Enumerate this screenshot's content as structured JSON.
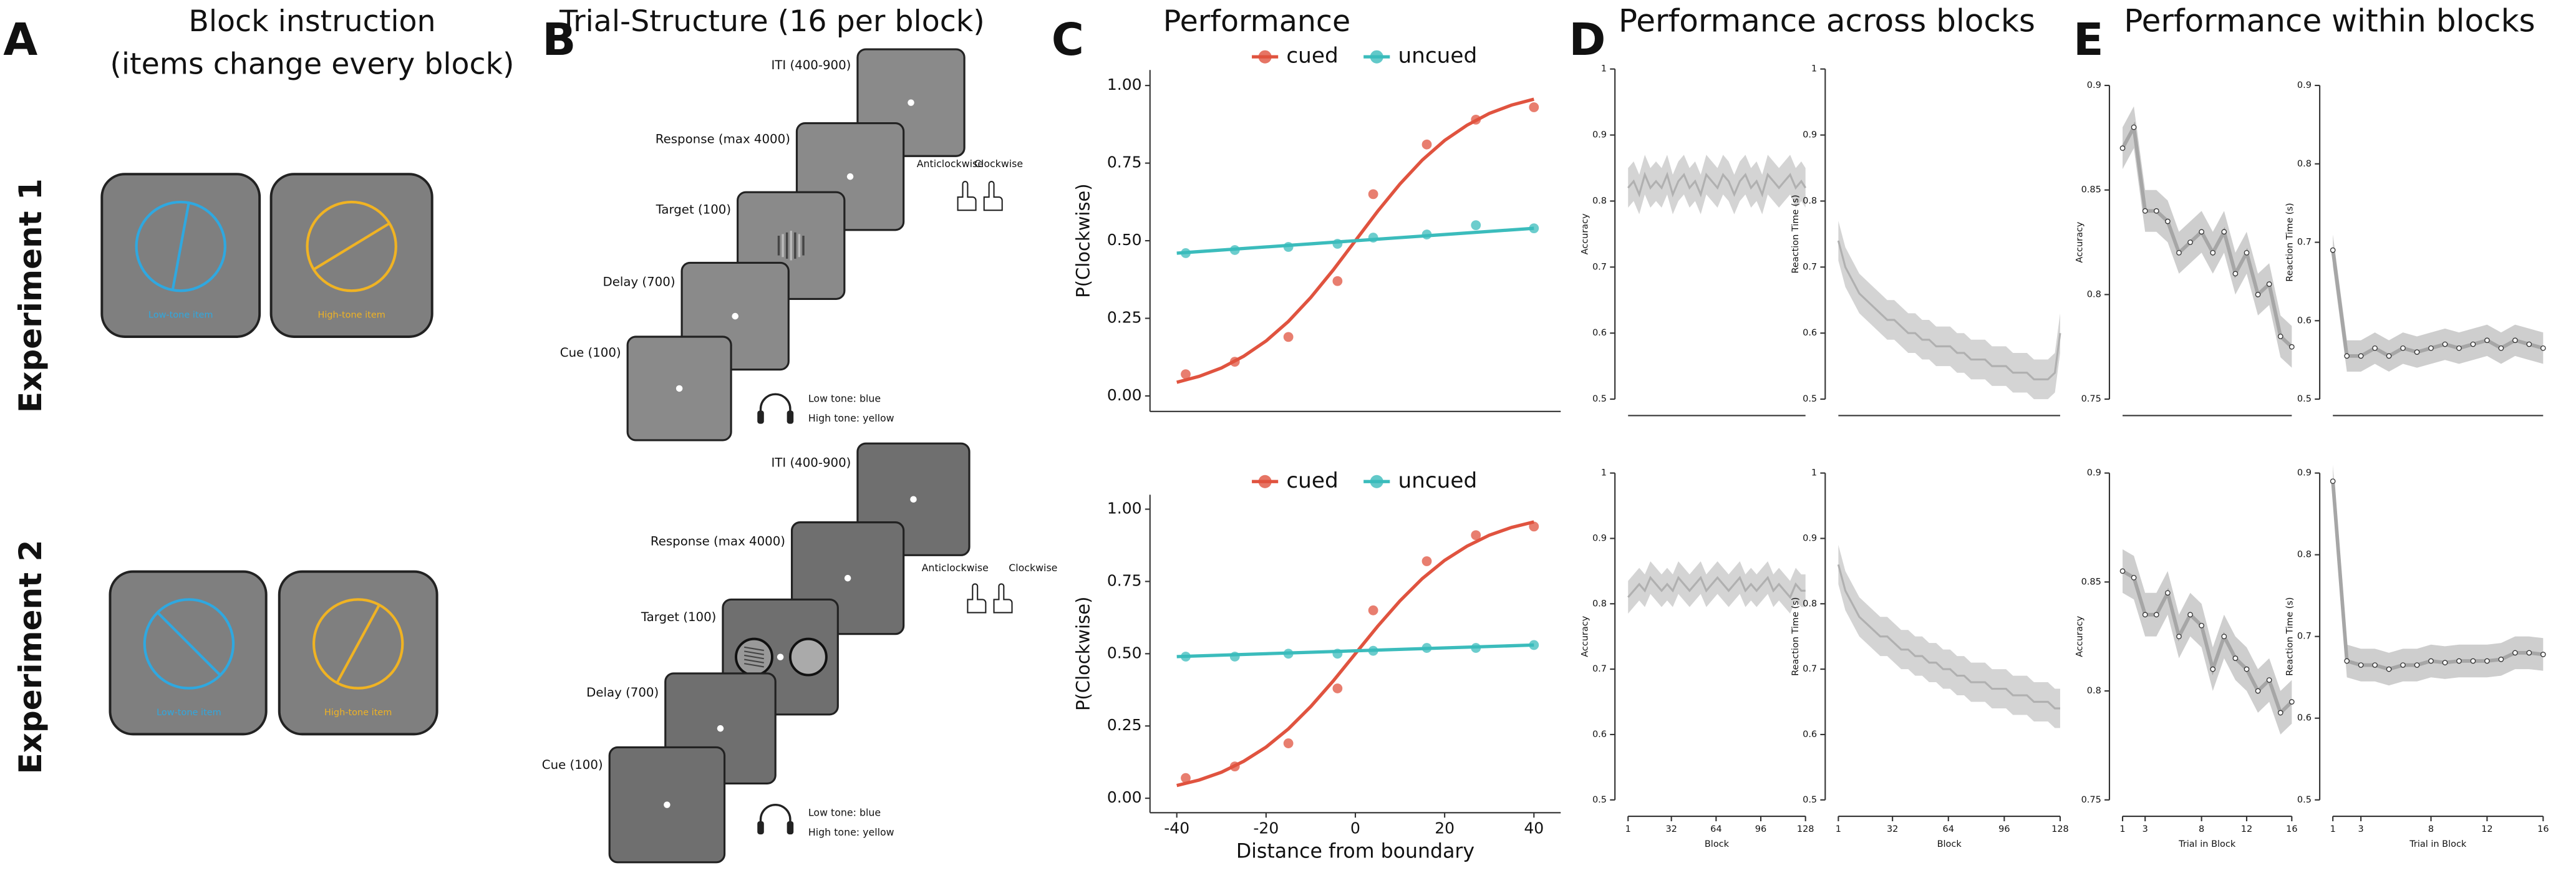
{
  "panel_labels": [
    "A",
    "B",
    "C",
    "D",
    "E"
  ],
  "panel_a": {
    "title_lines": [
      "Block instruction",
      "(items change every block)"
    ],
    "experiments": [
      "Experiment 1",
      "Experiment 2"
    ],
    "item_labels": [
      "Low-tone item",
      "High-tone item"
    ]
  },
  "panel_b": {
    "title": "Trial-Structure (16 per block)",
    "steps": [
      "ITI (400-900)",
      "Response (max 4000)",
      "Target (100)",
      "Delay (700)",
      "Cue (100)"
    ],
    "tones": [
      "Low tone: blue",
      "High tone: yellow"
    ],
    "responses": [
      "Anticlockwise",
      "Clockwise"
    ]
  },
  "panel_titles": {
    "c": "Performance",
    "d": "Performance across blocks",
    "e": "Performance within blocks"
  },
  "chart_data": [
    {
      "type": "line",
      "ylabel": "P(Clockwise)",
      "xlim": [
        -46,
        46
      ],
      "ylim": [
        -0.05,
        1.05
      ],
      "yticks": [
        {
          "value": 0,
          "label": "0.00"
        },
        {
          "value": 0.25,
          "label": "0.25"
        },
        {
          "value": 0.5,
          "label": "0.50"
        },
        {
          "value": 0.75,
          "label": "0.75"
        },
        {
          "value": 1,
          "label": "1.00"
        }
      ],
      "legend": "top",
      "series": [
        {
          "name": "cued",
          "color": "#e0533f",
          "x": [
            -38,
            -27,
            -15,
            -4,
            4,
            16,
            27,
            40
          ],
          "values": [
            0.07,
            0.11,
            0.19,
            0.37,
            0.65,
            0.81,
            0.89,
            0.93
          ],
          "fit_x": [
            -40,
            -35,
            -30,
            -25,
            -20,
            -15,
            -10,
            -5,
            0,
            5,
            10,
            15,
            20,
            25,
            30,
            35,
            40
          ],
          "fit_values": [
            0.044,
            0.063,
            0.09,
            0.128,
            0.177,
            0.24,
            0.317,
            0.405,
            0.5,
            0.595,
            0.683,
            0.76,
            0.823,
            0.872,
            0.91,
            0.937,
            0.956
          ]
        },
        {
          "name": "uncued",
          "color": "#3bbcbc",
          "x": [
            -38,
            -27,
            -15,
            -4,
            4,
            16,
            27,
            40
          ],
          "values": [
            0.46,
            0.47,
            0.48,
            0.49,
            0.51,
            0.52,
            0.55,
            0.54
          ],
          "fit_x": [
            -40,
            40
          ],
          "fit_values": [
            0.46,
            0.54
          ]
        }
      ]
    },
    {
      "type": "line",
      "ylabel": "P(Clockwise)",
      "xlabel": "Distance from boundary",
      "xlim": [
        -46,
        46
      ],
      "ylim": [
        -0.05,
        1.05
      ],
      "xticks": [
        -40,
        -20,
        0,
        20,
        40
      ],
      "yticks": [
        {
          "value": 0,
          "label": "0.00"
        },
        {
          "value": 0.25,
          "label": "0.25"
        },
        {
          "value": 0.5,
          "label": "0.50"
        },
        {
          "value": 0.75,
          "label": "0.75"
        },
        {
          "value": 1,
          "label": "1.00"
        }
      ],
      "legend": "top",
      "series": [
        {
          "name": "cued",
          "color": "#e0533f",
          "x": [
            -38,
            -27,
            -15,
            -4,
            4,
            16,
            27,
            40
          ],
          "values": [
            0.07,
            0.11,
            0.19,
            0.38,
            0.65,
            0.82,
            0.91,
            0.94
          ],
          "fit_x": [
            -40,
            -35,
            -30,
            -25,
            -20,
            -15,
            -10,
            -5,
            0,
            5,
            10,
            15,
            20,
            25,
            30,
            35,
            40
          ],
          "fit_values": [
            0.044,
            0.063,
            0.09,
            0.128,
            0.177,
            0.24,
            0.317,
            0.405,
            0.5,
            0.595,
            0.683,
            0.76,
            0.823,
            0.872,
            0.91,
            0.937,
            0.956
          ]
        },
        {
          "name": "uncued",
          "color": "#3bbcbc",
          "x": [
            -38,
            -27,
            -15,
            -4,
            4,
            16,
            27,
            40
          ],
          "values": [
            0.49,
            0.49,
            0.5,
            0.5,
            0.51,
            0.52,
            0.52,
            0.53
          ],
          "fit_x": [
            -40,
            40
          ],
          "fit_values": [
            0.49,
            0.53
          ]
        }
      ]
    },
    {
      "type": "band",
      "ylabel": "Accuracy",
      "xlim": [
        1,
        128
      ],
      "ylim": [
        0.5,
        1
      ],
      "yticks": [
        0.5,
        0.6,
        0.7,
        0.8,
        0.9,
        1
      ],
      "color": "#b0b0b0",
      "band": 0.03,
      "markers": false,
      "x": [
        1,
        5,
        9,
        13,
        17,
        21,
        25,
        29,
        33,
        37,
        41,
        45,
        49,
        53,
        57,
        61,
        65,
        69,
        73,
        77,
        81,
        85,
        89,
        93,
        97,
        101,
        105,
        109,
        113,
        117,
        121,
        125,
        128
      ],
      "values": [
        0.82,
        0.83,
        0.81,
        0.84,
        0.82,
        0.83,
        0.82,
        0.84,
        0.81,
        0.83,
        0.84,
        0.82,
        0.83,
        0.81,
        0.84,
        0.83,
        0.82,
        0.84,
        0.83,
        0.81,
        0.83,
        0.84,
        0.82,
        0.83,
        0.81,
        0.84,
        0.83,
        0.82,
        0.83,
        0.84,
        0.82,
        0.83,
        0.82
      ]
    },
    {
      "type": "band",
      "ylabel": "Reaction Time (s)",
      "xlim": [
        1,
        128
      ],
      "ylim": [
        0.5,
        1
      ],
      "yticks": [
        0.5,
        0.6,
        0.7,
        0.8,
        0.9,
        1
      ],
      "color": "#b0b0b0",
      "band": 0.03,
      "markers": false,
      "x": [
        1,
        5,
        9,
        13,
        17,
        21,
        25,
        29,
        33,
        37,
        41,
        45,
        49,
        53,
        57,
        61,
        65,
        69,
        73,
        77,
        81,
        85,
        89,
        93,
        97,
        101,
        105,
        109,
        113,
        117,
        121,
        125,
        128
      ],
      "values": [
        0.74,
        0.7,
        0.68,
        0.66,
        0.65,
        0.64,
        0.63,
        0.62,
        0.62,
        0.61,
        0.6,
        0.6,
        0.59,
        0.59,
        0.58,
        0.58,
        0.58,
        0.57,
        0.57,
        0.56,
        0.56,
        0.56,
        0.55,
        0.55,
        0.55,
        0.54,
        0.54,
        0.54,
        0.53,
        0.53,
        0.53,
        0.54,
        0.6
      ]
    },
    {
      "type": "band",
      "ylabel": "Accuracy",
      "xlabel": "Block",
      "xlim": [
        1,
        128
      ],
      "ylim": [
        0.5,
        1
      ],
      "xticks": [
        1,
        32,
        64,
        96,
        128
      ],
      "yticks": [
        0.5,
        0.6,
        0.7,
        0.8,
        0.9,
        1
      ],
      "color": "#b0b0b0",
      "band": 0.025,
      "markers": false,
      "x": [
        1,
        5,
        9,
        13,
        17,
        21,
        25,
        29,
        33,
        37,
        41,
        45,
        49,
        53,
        57,
        61,
        65,
        69,
        73,
        77,
        81,
        85,
        89,
        93,
        97,
        101,
        105,
        109,
        113,
        117,
        121,
        125,
        128
      ],
      "values": [
        0.81,
        0.82,
        0.83,
        0.82,
        0.84,
        0.83,
        0.82,
        0.83,
        0.82,
        0.84,
        0.83,
        0.82,
        0.83,
        0.84,
        0.82,
        0.83,
        0.84,
        0.83,
        0.82,
        0.83,
        0.84,
        0.82,
        0.83,
        0.82,
        0.83,
        0.84,
        0.82,
        0.83,
        0.82,
        0.81,
        0.83,
        0.82,
        0.82
      ]
    },
    {
      "type": "band",
      "ylabel": "Reaction Time (s)",
      "xlabel": "Block",
      "xlim": [
        1,
        128
      ],
      "ylim": [
        0.5,
        1
      ],
      "xticks": [
        1,
        32,
        64,
        96,
        128
      ],
      "yticks": [
        0.5,
        0.6,
        0.7,
        0.8,
        0.9,
        1
      ],
      "color": "#b0b0b0",
      "band": 0.03,
      "markers": false,
      "x": [
        1,
        5,
        9,
        13,
        17,
        21,
        25,
        29,
        33,
        37,
        41,
        45,
        49,
        53,
        57,
        61,
        65,
        69,
        73,
        77,
        81,
        85,
        89,
        93,
        97,
        101,
        105,
        109,
        113,
        117,
        121,
        125,
        128
      ],
      "values": [
        0.86,
        0.82,
        0.8,
        0.78,
        0.77,
        0.76,
        0.75,
        0.75,
        0.74,
        0.73,
        0.73,
        0.72,
        0.72,
        0.71,
        0.71,
        0.7,
        0.7,
        0.69,
        0.69,
        0.68,
        0.68,
        0.68,
        0.67,
        0.67,
        0.67,
        0.66,
        0.66,
        0.66,
        0.65,
        0.65,
        0.65,
        0.64,
        0.64
      ]
    },
    {
      "type": "band",
      "ylabel": "Accuracy",
      "xlim": [
        1,
        16
      ],
      "ylim": [
        0.75,
        0.9
      ],
      "yticks": [
        0.75,
        0.8,
        0.85,
        0.9
      ],
      "color": "#a6a6a6",
      "band": 0.01,
      "markers": true,
      "x": [
        1,
        2,
        3,
        4,
        5,
        6,
        7,
        8,
        9,
        10,
        11,
        12,
        13,
        14,
        15,
        16
      ],
      "values": [
        0.87,
        0.88,
        0.84,
        0.84,
        0.835,
        0.82,
        0.825,
        0.83,
        0.82,
        0.83,
        0.81,
        0.82,
        0.8,
        0.805,
        0.78,
        0.775
      ]
    },
    {
      "type": "band",
      "ylabel": "Reaction Time (s)",
      "xlim": [
        1,
        16
      ],
      "ylim": [
        0.5,
        0.9
      ],
      "yticks": [
        0.5,
        0.6,
        0.7,
        0.8,
        0.9
      ],
      "color": "#a6a6a6",
      "band": 0.02,
      "markers": true,
      "x": [
        1,
        2,
        3,
        4,
        5,
        6,
        7,
        8,
        9,
        10,
        11,
        12,
        13,
        14,
        15,
        16
      ],
      "values": [
        0.69,
        0.555,
        0.555,
        0.565,
        0.555,
        0.565,
        0.56,
        0.565,
        0.57,
        0.565,
        0.57,
        0.575,
        0.565,
        0.575,
        0.57,
        0.565
      ]
    },
    {
      "type": "band",
      "ylabel": "Accuracy",
      "xlabel": "Trial in Block",
      "xlim": [
        1,
        16
      ],
      "ylim": [
        0.75,
        0.9
      ],
      "xticks": [
        1,
        3,
        8,
        12,
        16
      ],
      "yticks": [
        0.75,
        0.8,
        0.85,
        0.9
      ],
      "color": "#a6a6a6",
      "band": 0.01,
      "markers": true,
      "x": [
        1,
        2,
        3,
        4,
        5,
        6,
        7,
        8,
        9,
        10,
        11,
        12,
        13,
        14,
        15,
        16
      ],
      "values": [
        0.855,
        0.852,
        0.835,
        0.835,
        0.845,
        0.825,
        0.835,
        0.83,
        0.81,
        0.825,
        0.815,
        0.81,
        0.8,
        0.805,
        0.79,
        0.795
      ]
    },
    {
      "type": "band",
      "ylabel": "Reaction Time (s)",
      "xlabel": "Trial in Block",
      "xlim": [
        1,
        16
      ],
      "ylim": [
        0.5,
        0.9
      ],
      "xticks": [
        1,
        3,
        8,
        12,
        16
      ],
      "yticks": [
        0.5,
        0.6,
        0.7,
        0.8,
        0.9
      ],
      "color": "#a6a6a6",
      "band": 0.02,
      "markers": true,
      "x": [
        1,
        2,
        3,
        4,
        5,
        6,
        7,
        8,
        9,
        10,
        11,
        12,
        13,
        14,
        15,
        16
      ],
      "values": [
        0.89,
        0.67,
        0.665,
        0.665,
        0.66,
        0.665,
        0.665,
        0.67,
        0.668,
        0.67,
        0.67,
        0.67,
        0.672,
        0.68,
        0.68,
        0.678
      ]
    }
  ]
}
